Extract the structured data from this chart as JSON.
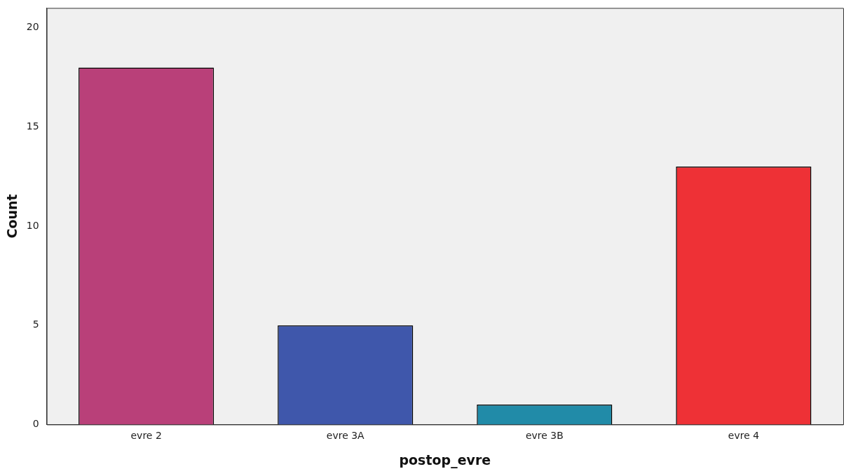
{
  "chart_data": {
    "type": "bar",
    "xlabel": "postop_evre",
    "ylabel": "Count",
    "categories": [
      "evre 2",
      "evre 3A",
      "evre 3B",
      "evre 4"
    ],
    "values": [
      18,
      5,
      1,
      13
    ],
    "colors": [
      "#b94079",
      "#3f57ab",
      "#218ba8",
      "#ee3136"
    ],
    "ylim": [
      0,
      21
    ],
    "yticks": [
      0,
      5,
      10,
      15,
      20
    ],
    "grid": false,
    "legend": false
  }
}
